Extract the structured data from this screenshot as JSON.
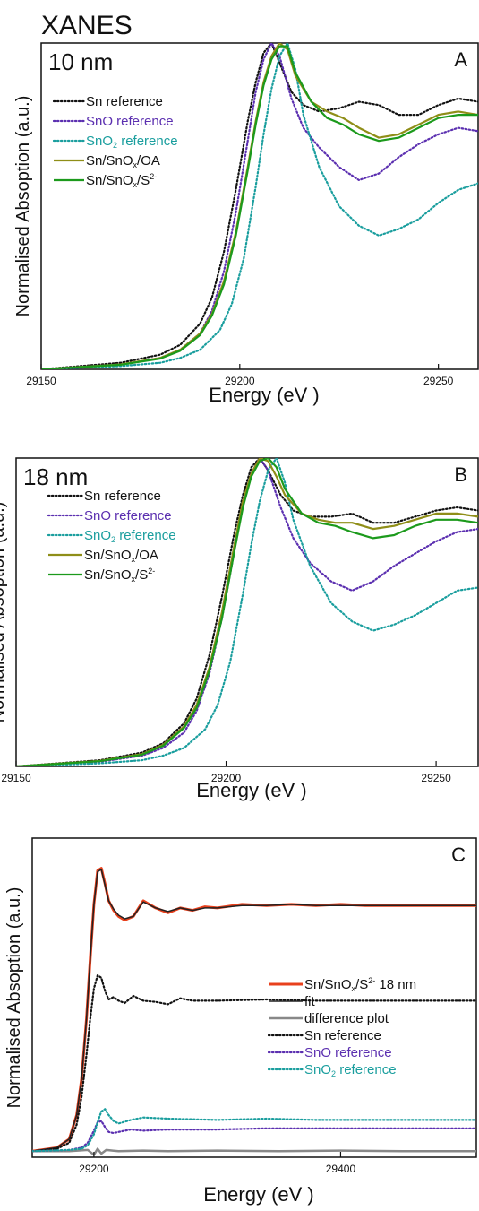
{
  "figure_title": "XANES",
  "chart_data": [
    {
      "type": "line",
      "panel": "A",
      "annotation": "10 nm",
      "xlabel": "Energy (eV )",
      "ylabel": "Normalised Absoption (a.u.)",
      "xlim": [
        29150,
        29260
      ],
      "ylim": [
        0,
        1.0
      ],
      "xticks": [
        29150,
        29200,
        29250
      ],
      "legend_position": "top-left",
      "series": [
        {
          "name": "Sn reference",
          "color": "#111111",
          "dash": "dot",
          "x": [
            29150,
            29170,
            29180,
            29185,
            29190,
            29193,
            29196,
            29199,
            29202,
            29204,
            29206,
            29208,
            29210,
            29213,
            29216,
            29220,
            29225,
            29230,
            29235,
            29240,
            29245,
            29250,
            29255,
            29260
          ],
          "y": [
            0,
            0.02,
            0.045,
            0.075,
            0.14,
            0.22,
            0.36,
            0.55,
            0.76,
            0.88,
            0.97,
            1.0,
            0.94,
            0.85,
            0.81,
            0.79,
            0.8,
            0.82,
            0.81,
            0.78,
            0.78,
            0.81,
            0.83,
            0.82
          ]
        },
        {
          "name": "SnO reference",
          "color": "#5b2fb0",
          "dash": "dot",
          "x": [
            29150,
            29170,
            29180,
            29185,
            29190,
            29193,
            29196,
            29199,
            29202,
            29204,
            29206,
            29208,
            29210,
            29213,
            29216,
            29220,
            29225,
            29230,
            29235,
            29240,
            29245,
            29250,
            29255,
            29260
          ],
          "y": [
            0,
            0.015,
            0.035,
            0.06,
            0.11,
            0.18,
            0.3,
            0.48,
            0.7,
            0.85,
            0.95,
            1.0,
            0.96,
            0.83,
            0.74,
            0.68,
            0.62,
            0.58,
            0.6,
            0.65,
            0.69,
            0.72,
            0.74,
            0.73
          ]
        },
        {
          "name": "SnO2 reference",
          "color": "#1a9e9e",
          "dash": "dot",
          "x": [
            29150,
            29170,
            29180,
            29185,
            29190,
            29195,
            29198,
            29201,
            29204,
            29206,
            29208,
            29210,
            29212,
            29214,
            29216,
            29220,
            29225,
            29230,
            29235,
            29240,
            29245,
            29250,
            29255,
            29260
          ],
          "y": [
            0,
            0.01,
            0.02,
            0.035,
            0.06,
            0.12,
            0.2,
            0.34,
            0.56,
            0.72,
            0.86,
            0.96,
            1.0,
            0.92,
            0.78,
            0.62,
            0.5,
            0.44,
            0.41,
            0.43,
            0.46,
            0.51,
            0.55,
            0.57
          ]
        },
        {
          "name": "Sn/SnOx/OA",
          "color": "#8f8e18",
          "dash": "solid",
          "x": [
            29150,
            29170,
            29180,
            29185,
            29190,
            29193,
            29196,
            29199,
            29202,
            29204,
            29206,
            29208,
            29210,
            29212,
            29214,
            29218,
            29222,
            29226,
            29230,
            29235,
            29240,
            29245,
            29250,
            29255,
            29260
          ],
          "y": [
            0,
            0.015,
            0.035,
            0.06,
            0.11,
            0.17,
            0.27,
            0.42,
            0.62,
            0.76,
            0.88,
            0.96,
            1.0,
            0.98,
            0.9,
            0.82,
            0.79,
            0.77,
            0.74,
            0.71,
            0.72,
            0.75,
            0.78,
            0.79,
            0.78
          ]
        },
        {
          "name": "Sn/SnOx/S2-",
          "color": "#1c9a1c",
          "dash": "solid",
          "x": [
            29150,
            29170,
            29180,
            29185,
            29190,
            29193,
            29196,
            29199,
            29202,
            29204,
            29206,
            29208,
            29210,
            29212,
            29214,
            29218,
            29222,
            29226,
            29230,
            29235,
            29240,
            29245,
            29250,
            29255,
            29260
          ],
          "y": [
            0,
            0.014,
            0.033,
            0.057,
            0.105,
            0.165,
            0.26,
            0.41,
            0.61,
            0.75,
            0.87,
            0.95,
            0.99,
            0.99,
            0.91,
            0.82,
            0.77,
            0.75,
            0.72,
            0.7,
            0.71,
            0.74,
            0.77,
            0.78,
            0.78
          ]
        }
      ]
    },
    {
      "type": "line",
      "panel": "B",
      "annotation": "18 nm",
      "xlabel": "Energy (eV )",
      "ylabel": "Normalised Absoption (a.u.)",
      "xlim": [
        29150,
        29260
      ],
      "ylim": [
        0,
        1.0
      ],
      "xticks": [
        29150,
        29200,
        29250
      ],
      "legend_position": "top-left",
      "series": [
        {
          "name": "Sn reference",
          "color": "#111111",
          "dash": "dot",
          "x": [
            29150,
            29170,
            29180,
            29185,
            29190,
            29193,
            29196,
            29199,
            29202,
            29204,
            29206,
            29208,
            29210,
            29213,
            29216,
            29220,
            29225,
            29230,
            29235,
            29240,
            29245,
            29250,
            29255,
            29260
          ],
          "y": [
            0,
            0.02,
            0.045,
            0.075,
            0.14,
            0.22,
            0.36,
            0.55,
            0.76,
            0.88,
            0.97,
            1.0,
            0.96,
            0.88,
            0.83,
            0.81,
            0.81,
            0.82,
            0.79,
            0.79,
            0.81,
            0.83,
            0.84,
            0.83
          ]
        },
        {
          "name": "SnO reference",
          "color": "#5b2fb0",
          "dash": "dot",
          "x": [
            29150,
            29170,
            29180,
            29185,
            29190,
            29193,
            29196,
            29199,
            29202,
            29204,
            29206,
            29208,
            29210,
            29213,
            29216,
            29220,
            29225,
            29230,
            29235,
            29240,
            29245,
            29250,
            29255,
            29260
          ],
          "y": [
            0,
            0.015,
            0.035,
            0.06,
            0.11,
            0.18,
            0.3,
            0.48,
            0.7,
            0.85,
            0.95,
            1.0,
            0.96,
            0.84,
            0.74,
            0.66,
            0.6,
            0.57,
            0.6,
            0.65,
            0.69,
            0.73,
            0.76,
            0.77
          ]
        },
        {
          "name": "SnO2 reference",
          "color": "#1a9e9e",
          "dash": "dot",
          "x": [
            29150,
            29170,
            29180,
            29185,
            29190,
            29195,
            29198,
            29201,
            29204,
            29206,
            29208,
            29210,
            29212,
            29214,
            29216,
            29220,
            29225,
            29230,
            29235,
            29240,
            29245,
            29250,
            29255,
            29260
          ],
          "y": [
            0,
            0.01,
            0.02,
            0.035,
            0.06,
            0.12,
            0.2,
            0.34,
            0.56,
            0.72,
            0.86,
            0.96,
            1.0,
            0.92,
            0.8,
            0.65,
            0.53,
            0.47,
            0.44,
            0.46,
            0.49,
            0.53,
            0.57,
            0.58
          ]
        },
        {
          "name": "Sn/SnOx/OA",
          "color": "#8f8e18",
          "dash": "solid",
          "x": [
            29150,
            29170,
            29180,
            29185,
            29190,
            29193,
            29196,
            29199,
            29202,
            29204,
            29206,
            29208,
            29210,
            29212,
            29214,
            29218,
            29222,
            29226,
            29230,
            29235,
            29240,
            29245,
            29250,
            29255,
            29260
          ],
          "y": [
            0,
            0.018,
            0.04,
            0.07,
            0.13,
            0.2,
            0.32,
            0.5,
            0.72,
            0.86,
            0.95,
            1.0,
            0.99,
            0.94,
            0.88,
            0.82,
            0.8,
            0.79,
            0.79,
            0.77,
            0.78,
            0.8,
            0.82,
            0.82,
            0.81
          ]
        },
        {
          "name": "Sn/SnOx/S2-",
          "color": "#1c9a1c",
          "dash": "solid",
          "x": [
            29150,
            29170,
            29180,
            29185,
            29190,
            29193,
            29196,
            29199,
            29202,
            29204,
            29206,
            29208,
            29210,
            29212,
            29214,
            29218,
            29222,
            29226,
            29230,
            29235,
            29240,
            29245,
            29250,
            29255,
            29260
          ],
          "y": [
            0,
            0.017,
            0.038,
            0.067,
            0.125,
            0.19,
            0.31,
            0.48,
            0.7,
            0.84,
            0.94,
            0.99,
            1.0,
            0.97,
            0.9,
            0.82,
            0.79,
            0.78,
            0.76,
            0.74,
            0.75,
            0.78,
            0.8,
            0.8,
            0.79
          ]
        }
      ]
    },
    {
      "type": "line",
      "panel": "C",
      "xlabel": "Energy (eV )",
      "ylabel": "Normalised Absoption (a.u.)",
      "xlim": [
        29150,
        29510
      ],
      "ylim": [
        -0.05,
        2.6
      ],
      "xticks": [
        29200,
        29400
      ],
      "legend_position": "right",
      "series": [
        {
          "name": "Sn/SnOx/S2- 18 nm",
          "color": "#e8401c",
          "dash": "solid",
          "width": 3,
          "x": [
            29150,
            29170,
            29180,
            29186,
            29190,
            29194,
            29197,
            29200,
            29203,
            29206,
            29209,
            29212,
            29216,
            29220,
            29225,
            29232,
            29240,
            29250,
            29260,
            29270,
            29280,
            29290,
            29300,
            29320,
            29340,
            29360,
            29380,
            29400,
            29420,
            29450,
            29480,
            29510
          ],
          "y": [
            0,
            0.03,
            0.1,
            0.3,
            0.6,
            1.1,
            1.6,
            2.05,
            2.33,
            2.35,
            2.22,
            2.08,
            2.0,
            1.95,
            1.92,
            1.95,
            2.08,
            2.02,
            1.98,
            2.02,
            2.0,
            2.03,
            2.02,
            2.05,
            2.04,
            2.05,
            2.04,
            2.05,
            2.04,
            2.04,
            2.04,
            2.04
          ]
        },
        {
          "name": "fit",
          "color": "#222222",
          "dash": "solid",
          "width": 1.5,
          "x": [
            29150,
            29170,
            29180,
            29186,
            29190,
            29194,
            29197,
            29200,
            29203,
            29206,
            29209,
            29212,
            29216,
            29220,
            29225,
            29232,
            29240,
            29250,
            29260,
            29270,
            29280,
            29290,
            29300,
            29320,
            29340,
            29360,
            29380,
            29400,
            29420,
            29450,
            29480,
            29510
          ],
          "y": [
            0,
            0.03,
            0.1,
            0.3,
            0.6,
            1.1,
            1.6,
            2.05,
            2.32,
            2.34,
            2.21,
            2.08,
            2.01,
            1.96,
            1.93,
            1.95,
            2.07,
            2.02,
            1.99,
            2.02,
            2.0,
            2.02,
            2.02,
            2.04,
            2.04,
            2.05,
            2.04,
            2.04,
            2.04,
            2.04,
            2.04,
            2.04
          ]
        },
        {
          "name": "difference plot",
          "color": "#888888",
          "dash": "solid",
          "width": 2.5,
          "x": [
            29150,
            29180,
            29195,
            29200,
            29203,
            29206,
            29210,
            29220,
            29240,
            29260,
            29300,
            29350,
            29400,
            29450,
            29510
          ],
          "y": [
            0,
            0,
            0.01,
            -0.03,
            0.02,
            -0.02,
            0.01,
            0,
            0.005,
            0,
            0.005,
            0,
            0.005,
            0,
            0
          ]
        },
        {
          "name": "Sn reference",
          "color": "#111111",
          "dash": "dot",
          "x": [
            29150,
            29170,
            29180,
            29186,
            29190,
            29194,
            29197,
            29200,
            29203,
            29206,
            29209,
            29212,
            29216,
            29220,
            29225,
            29232,
            29240,
            29250,
            29260,
            29270,
            29280,
            29300,
            29340,
            29380,
            29420,
            29460,
            29510
          ],
          "y": [
            0,
            0.02,
            0.07,
            0.22,
            0.45,
            0.8,
            1.1,
            1.35,
            1.46,
            1.44,
            1.33,
            1.26,
            1.28,
            1.25,
            1.23,
            1.29,
            1.25,
            1.24,
            1.22,
            1.27,
            1.25,
            1.25,
            1.26,
            1.25,
            1.25,
            1.25,
            1.25
          ]
        },
        {
          "name": "SnO reference",
          "color": "#5b2fb0",
          "dash": "dot",
          "x": [
            29150,
            29180,
            29190,
            29195,
            29200,
            29203,
            29206,
            29209,
            29212,
            29216,
            29220,
            29230,
            29240,
            29260,
            29300,
            29340,
            29380,
            29420,
            29460,
            29510
          ],
          "y": [
            0,
            0.01,
            0.03,
            0.07,
            0.17,
            0.24,
            0.25,
            0.2,
            0.16,
            0.15,
            0.16,
            0.18,
            0.17,
            0.18,
            0.18,
            0.19,
            0.19,
            0.19,
            0.19,
            0.19
          ]
        },
        {
          "name": "SnO2 reference",
          "color": "#1a9e9e",
          "dash": "dot",
          "x": [
            29150,
            29180,
            29190,
            29195,
            29200,
            29203,
            29206,
            29209,
            29212,
            29216,
            29220,
            29230,
            29240,
            29260,
            29300,
            29340,
            29380,
            29420,
            29460,
            29510
          ],
          "y": [
            0,
            0.01,
            0.02,
            0.05,
            0.14,
            0.24,
            0.33,
            0.35,
            0.3,
            0.25,
            0.23,
            0.26,
            0.28,
            0.27,
            0.26,
            0.27,
            0.26,
            0.26,
            0.26,
            0.26
          ]
        }
      ]
    }
  ],
  "legend_labels": {
    "A": [
      {
        "main": "Sn reference"
      },
      {
        "main": "SnO reference"
      },
      {
        "main": "SnO",
        "sub": "2",
        "tail": " reference"
      },
      {
        "main": "Sn/SnO",
        "sub": "x",
        "tail": "/OA"
      },
      {
        "main": "Sn/SnO",
        "sub": "x",
        "tail": "/S",
        "sup": "2-"
      }
    ],
    "B": [
      {
        "main": "Sn reference"
      },
      {
        "main": "SnO reference"
      },
      {
        "main": "SnO",
        "sub": "2",
        "tail": " reference"
      },
      {
        "main": "Sn/SnO",
        "sub": "x",
        "tail": "/OA"
      },
      {
        "main": "Sn/SnO",
        "sub": "x",
        "tail": "/S",
        "sup": "2-"
      }
    ],
    "C": [
      {
        "main": "Sn/SnO",
        "sub": "x",
        "tail": "/S",
        "sup": "2-",
        "tail2": " 18 nm"
      },
      {
        "main": "fit"
      },
      {
        "main": "difference plot"
      },
      {
        "main": "Sn reference"
      },
      {
        "main": "SnO reference"
      },
      {
        "main": "SnO",
        "sub": "2",
        "tail": " reference"
      }
    ]
  }
}
